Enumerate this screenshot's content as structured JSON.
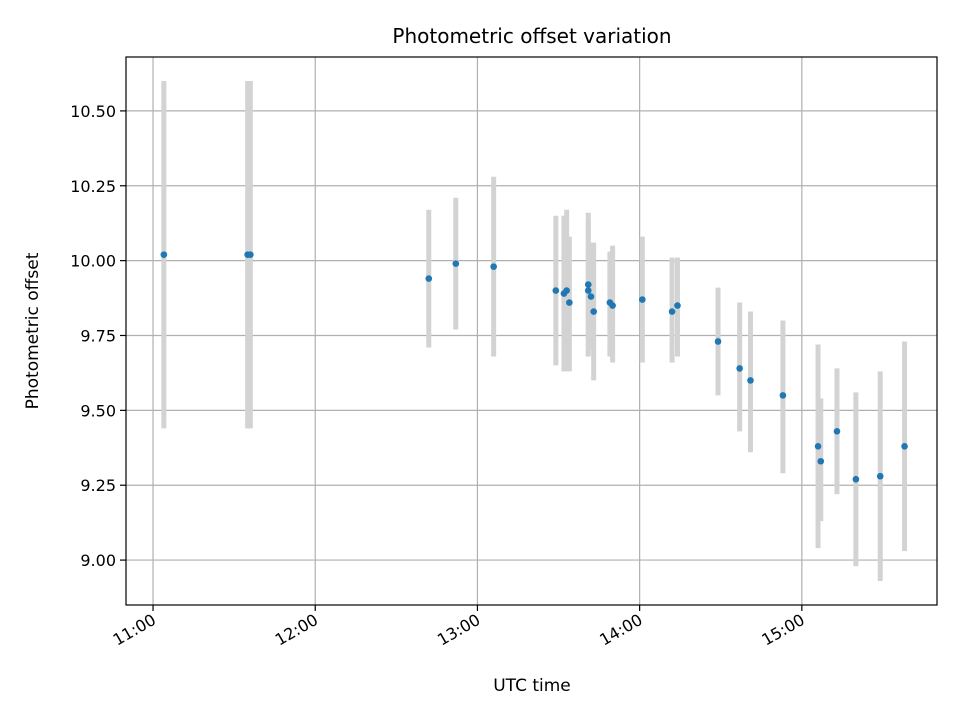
{
  "chart_data": {
    "type": "scatter",
    "title": "Photometric offset variation",
    "xlabel": "UTC time",
    "ylabel": "Photometric offset",
    "x_unit": "UTC time (HH:MM)",
    "xlim": [
      "10:50",
      "15:50"
    ],
    "ylim": [
      8.85,
      10.68
    ],
    "x_ticks": [
      "11:00",
      "12:00",
      "13:00",
      "14:00",
      "15:00"
    ],
    "y_ticks": [
      "9.00",
      "9.25",
      "9.50",
      "9.75",
      "10.00",
      "10.25",
      "10.50"
    ],
    "grid": true,
    "legend": "none",
    "colors": {
      "points": "#1f77b4",
      "error_bars": "#d3d3d3",
      "grid": "#b0b0b0"
    },
    "points": [
      {
        "x": "11:04",
        "y": 10.02,
        "lo": 9.44,
        "hi": 10.6
      },
      {
        "x": "11:35",
        "y": 10.02,
        "lo": 9.44,
        "hi": 10.6
      },
      {
        "x": "11:36",
        "y": 10.02,
        "lo": 9.44,
        "hi": 10.6
      },
      {
        "x": "12:42",
        "y": 9.94,
        "lo": 9.71,
        "hi": 10.17
      },
      {
        "x": "12:52",
        "y": 9.99,
        "lo": 9.77,
        "hi": 10.21
      },
      {
        "x": "13:06",
        "y": 9.98,
        "lo": 9.68,
        "hi": 10.28
      },
      {
        "x": "13:29",
        "y": 9.9,
        "lo": 9.65,
        "hi": 10.15
      },
      {
        "x": "13:32",
        "y": 9.89,
        "lo": 9.63,
        "hi": 10.15
      },
      {
        "x": "13:33",
        "y": 9.9,
        "lo": 9.63,
        "hi": 10.17
      },
      {
        "x": "13:34",
        "y": 9.86,
        "lo": 9.63,
        "hi": 10.08
      },
      {
        "x": "13:41",
        "y": 9.9,
        "lo": 9.68,
        "hi": 10.13
      },
      {
        "x": "13:41",
        "y": 9.92,
        "lo": 9.68,
        "hi": 10.16
      },
      {
        "x": "13:42",
        "y": 9.88,
        "lo": 9.7,
        "hi": 10.06
      },
      {
        "x": "13:43",
        "y": 9.83,
        "lo": 9.6,
        "hi": 10.06
      },
      {
        "x": "13:49",
        "y": 9.86,
        "lo": 9.68,
        "hi": 10.03
      },
      {
        "x": "13:50",
        "y": 9.85,
        "lo": 9.66,
        "hi": 10.05
      },
      {
        "x": "14:01",
        "y": 9.87,
        "lo": 9.66,
        "hi": 10.08
      },
      {
        "x": "14:12",
        "y": 9.83,
        "lo": 9.66,
        "hi": 10.01
      },
      {
        "x": "14:14",
        "y": 9.85,
        "lo": 9.68,
        "hi": 10.01
      },
      {
        "x": "14:29",
        "y": 9.73,
        "lo": 9.55,
        "hi": 9.91
      },
      {
        "x": "14:37",
        "y": 9.64,
        "lo": 9.43,
        "hi": 9.86
      },
      {
        "x": "14:41",
        "y": 9.6,
        "lo": 9.36,
        "hi": 9.83
      },
      {
        "x": "14:53",
        "y": 9.55,
        "lo": 9.29,
        "hi": 9.8
      },
      {
        "x": "15:06",
        "y": 9.38,
        "lo": 9.04,
        "hi": 9.72
      },
      {
        "x": "15:07",
        "y": 9.33,
        "lo": 9.13,
        "hi": 9.54
      },
      {
        "x": "15:13",
        "y": 9.43,
        "lo": 9.22,
        "hi": 9.64
      },
      {
        "x": "15:20",
        "y": 9.27,
        "lo": 8.98,
        "hi": 9.56
      },
      {
        "x": "15:29",
        "y": 9.28,
        "lo": 8.93,
        "hi": 9.63
      },
      {
        "x": "15:38",
        "y": 9.38,
        "lo": 9.03,
        "hi": 9.73
      }
    ]
  }
}
